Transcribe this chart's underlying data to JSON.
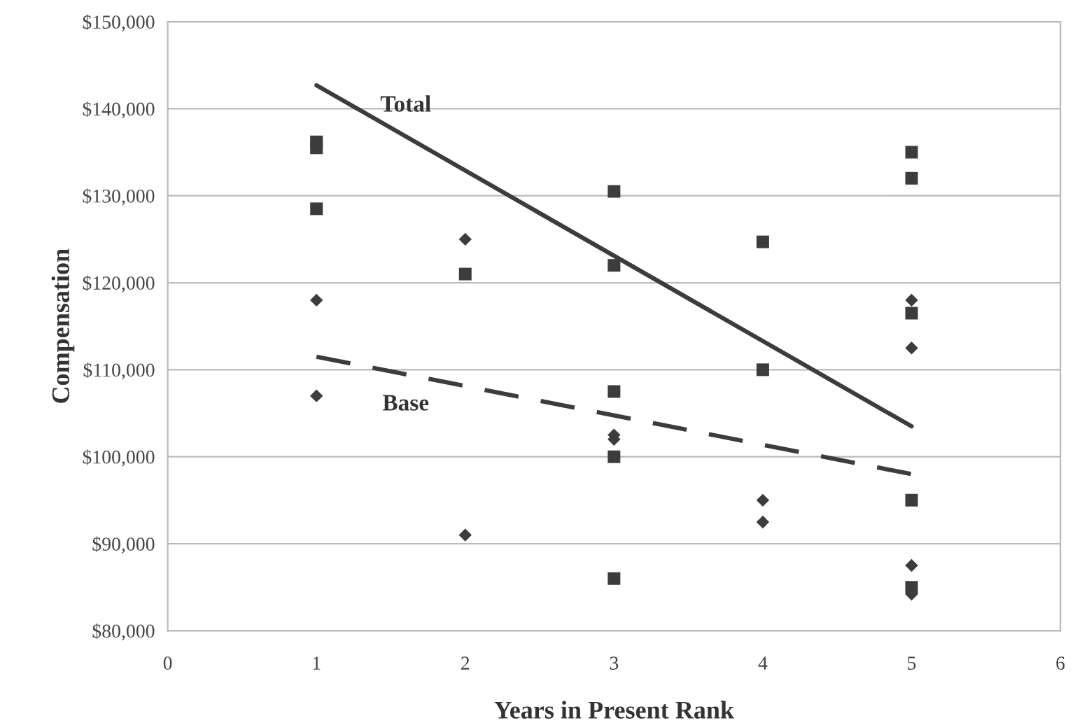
{
  "chart_data": {
    "type": "scatter",
    "xlabel": "Years in Present Rank",
    "ylabel": "Compensation",
    "xlim": [
      0,
      6
    ],
    "xticks": [
      0,
      1,
      2,
      3,
      4,
      5,
      6
    ],
    "ylim": [
      80000,
      150000
    ],
    "yticks": [
      {
        "value": 80000,
        "label": "$80,000"
      },
      {
        "value": 90000,
        "label": "$90,000"
      },
      {
        "value": 100000,
        "label": "$100,000"
      },
      {
        "value": 110000,
        "label": "$110,000"
      },
      {
        "value": 120000,
        "label": "$120,000"
      },
      {
        "value": 130000,
        "label": "$130,000"
      },
      {
        "value": 140000,
        "label": "$140,000"
      },
      {
        "value": 150000,
        "label": "$150,000"
      }
    ],
    "grid": "y",
    "series": [
      {
        "marker": "square",
        "color": "#3c3c3c",
        "x": [
          1,
          1,
          1,
          2,
          3,
          3,
          3,
          3,
          3,
          4,
          4,
          5,
          5,
          5,
          5,
          5
        ],
        "values": [
          136200,
          135500,
          128500,
          121000,
          130500,
          122000,
          107500,
          100000,
          86000,
          124700,
          110000,
          135000,
          132000,
          116500,
          95000,
          85000
        ]
      },
      {
        "marker": "diamond",
        "color": "#3c3c3c",
        "x": [
          1,
          1,
          2,
          2,
          3,
          3,
          4,
          4,
          5,
          5,
          5,
          5
        ],
        "values": [
          118000,
          107000,
          125000,
          91000,
          102500,
          102000,
          95000,
          92500,
          118000,
          112500,
          87500,
          84200
        ]
      },
      {
        "type": "line",
        "name": "Total",
        "line_style": "solid",
        "color": "#3c3c3c",
        "x": [
          1,
          5
        ],
        "values": [
          142700,
          103500
        ]
      },
      {
        "type": "line",
        "name": "Base",
        "line_style": "dashed",
        "color": "#3c3c3c",
        "x": [
          1,
          5
        ],
        "values": [
          111500,
          98000
        ]
      }
    ]
  }
}
